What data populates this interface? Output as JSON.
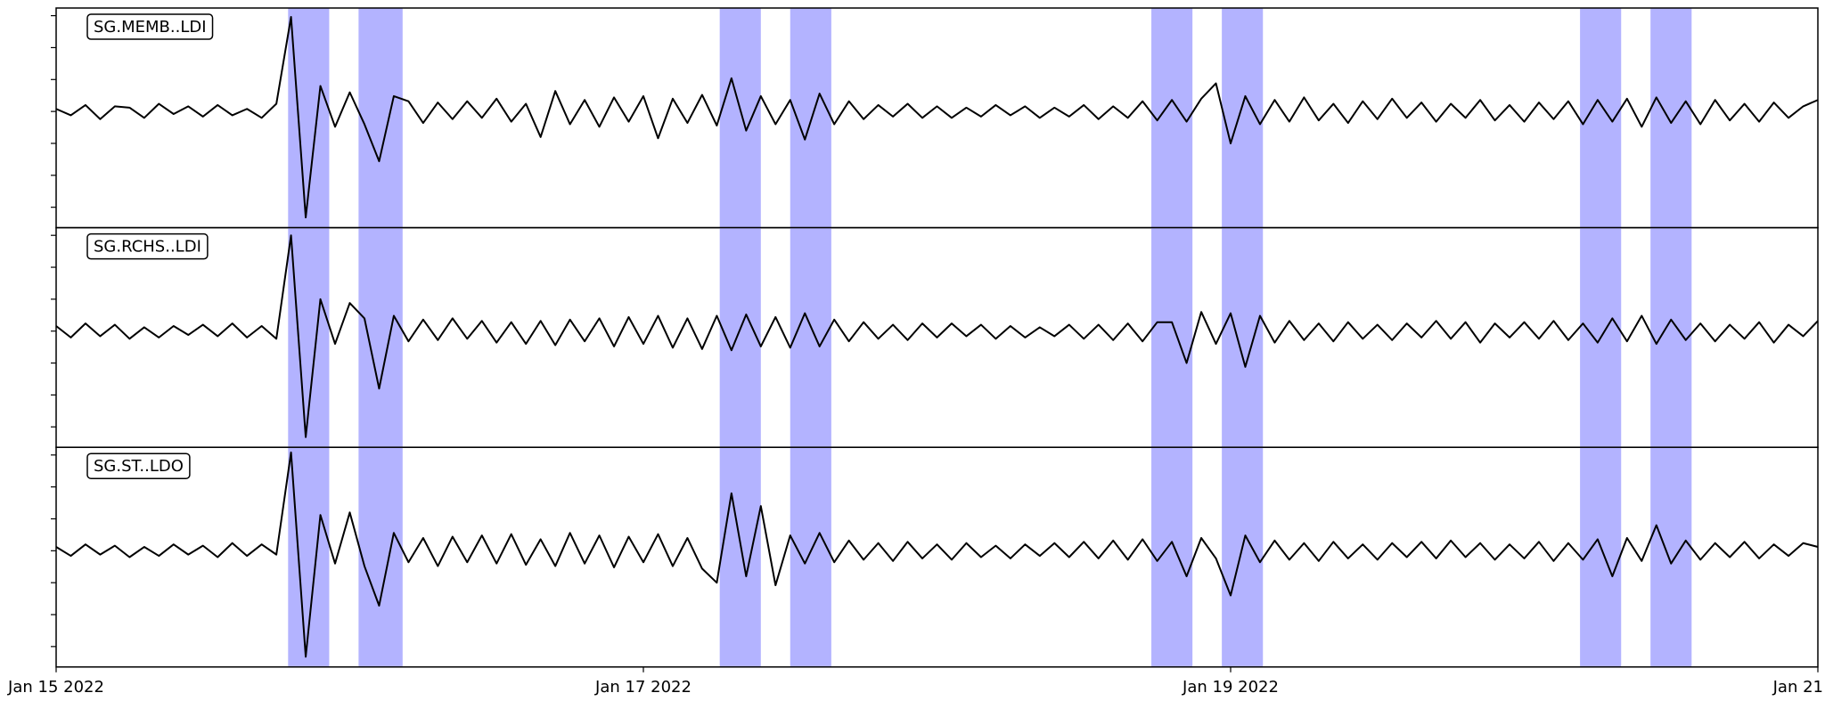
{
  "chart_data": [
    {
      "type": "line",
      "annotation": "SG.MEMB..LDI",
      "x": [
        0,
        0.05,
        0.1,
        0.15,
        0.2,
        0.25,
        0.3,
        0.35,
        0.4,
        0.45,
        0.5,
        0.55,
        0.6,
        0.65,
        0.7,
        0.75,
        0.8,
        0.85,
        0.9,
        0.95,
        1,
        1.05,
        1.1,
        1.15,
        1.2,
        1.25,
        1.3,
        1.35,
        1.4,
        1.45,
        1.5,
        1.55,
        1.6,
        1.65,
        1.7,
        1.75,
        1.8,
        1.85,
        1.9,
        1.95,
        2,
        2.05,
        2.1,
        2.15,
        2.2,
        2.25,
        2.3,
        2.35,
        2.4,
        2.45,
        2.5,
        2.55,
        2.6,
        2.65,
        2.7,
        2.75,
        2.8,
        2.85,
        2.9,
        2.95,
        3,
        3.05,
        3.1,
        3.15,
        3.2,
        3.25,
        3.3,
        3.35,
        3.4,
        3.45,
        3.5,
        3.55,
        3.6,
        3.65,
        3.7,
        3.75,
        3.8,
        3.85,
        3.9,
        3.95,
        4,
        4.05,
        4.1,
        4.15,
        4.2,
        4.25,
        4.3,
        4.35,
        4.4,
        4.45,
        4.5,
        4.55,
        4.6,
        4.65,
        4.7,
        4.75,
        4.8,
        4.85,
        4.9,
        4.95,
        5,
        5.05,
        5.1,
        5.15,
        5.2,
        5.25,
        5.3,
        5.35,
        5.4,
        5.45,
        5.5,
        5.55,
        5.6,
        5.65,
        5.7,
        5.75,
        5.8,
        5.85,
        5.9,
        5.95,
        6
      ],
      "series": [
        {
          "color": "#000000",
          "values": [
            0.02,
            -0.03,
            0.05,
            -0.06,
            0.04,
            0.03,
            -0.05,
            0.06,
            -0.02,
            0.04,
            -0.04,
            0.05,
            -0.03,
            0.02,
            -0.05,
            0.06,
            0.74,
            -0.83,
            0.2,
            -0.12,
            0.15,
            -0.1,
            -0.39,
            0.12,
            0.08,
            -0.09,
            0.07,
            -0.06,
            0.08,
            -0.05,
            0.1,
            -0.08,
            0.06,
            -0.2,
            0.16,
            -0.1,
            0.09,
            -0.12,
            0.11,
            -0.08,
            0.12,
            -0.21,
            0.1,
            -0.09,
            0.13,
            -0.11,
            0.26,
            -0.15,
            0.12,
            -0.1,
            0.09,
            -0.22,
            0.14,
            -0.1,
            0.08,
            -0.06,
            0.05,
            -0.04,
            0.06,
            -0.05,
            0.04,
            -0.05,
            0.03,
            -0.04,
            0.05,
            -0.03,
            0.04,
            -0.05,
            0.03,
            -0.04,
            0.05,
            -0.06,
            0.04,
            -0.05,
            0.08,
            -0.07,
            0.09,
            -0.08,
            0.1,
            0.22,
            -0.25,
            0.12,
            -0.1,
            0.09,
            -0.08,
            0.11,
            -0.07,
            0.06,
            -0.09,
            0.08,
            -0.06,
            0.1,
            -0.05,
            0.07,
            -0.08,
            0.06,
            -0.05,
            0.09,
            -0.07,
            0.05,
            -0.08,
            0.07,
            -0.06,
            0.08,
            -0.1,
            0.09,
            -0.08,
            0.1,
            -0.12,
            0.11,
            -0.09,
            0.08,
            -0.1,
            0.09,
            -0.07,
            0.06,
            -0.08,
            0.07,
            -0.05,
            0.04,
            0.09
          ]
        }
      ],
      "spans": [
        [
          0.79,
          0.93
        ],
        [
          1.03,
          1.18
        ],
        [
          2.26,
          2.4
        ],
        [
          2.5,
          2.64
        ],
        [
          3.73,
          3.87
        ],
        [
          3.97,
          4.11
        ],
        [
          5.19,
          5.33
        ],
        [
          5.43,
          5.57
        ]
      ],
      "span_color": "#b3b3ff",
      "xlim": [
        0,
        6
      ],
      "ylim": [
        -0.91,
        0.81
      ],
      "yticks": [
        -0.75,
        -0.5,
        -0.25,
        0,
        0.25,
        0.5,
        0.75
      ]
    },
    {
      "type": "line",
      "annotation": "SG.RCHS..LDI",
      "x": [
        0,
        0.05,
        0.1,
        0.15,
        0.2,
        0.25,
        0.3,
        0.35,
        0.4,
        0.45,
        0.5,
        0.55,
        0.6,
        0.65,
        0.7,
        0.75,
        0.8,
        0.85,
        0.9,
        0.95,
        1,
        1.05,
        1.1,
        1.15,
        1.2,
        1.25,
        1.3,
        1.35,
        1.4,
        1.45,
        1.5,
        1.55,
        1.6,
        1.65,
        1.7,
        1.75,
        1.8,
        1.85,
        1.9,
        1.95,
        2,
        2.05,
        2.1,
        2.15,
        2.2,
        2.25,
        2.3,
        2.35,
        2.4,
        2.45,
        2.5,
        2.55,
        2.6,
        2.65,
        2.7,
        2.75,
        2.8,
        2.85,
        2.9,
        2.95,
        3,
        3.05,
        3.1,
        3.15,
        3.2,
        3.25,
        3.3,
        3.35,
        3.4,
        3.45,
        3.5,
        3.55,
        3.6,
        3.65,
        3.7,
        3.75,
        3.8,
        3.85,
        3.9,
        3.95,
        4,
        4.05,
        4.1,
        4.15,
        4.2,
        4.25,
        4.3,
        4.35,
        4.4,
        4.45,
        4.5,
        4.55,
        4.6,
        4.65,
        4.7,
        4.75,
        4.8,
        4.85,
        4.9,
        4.95,
        5,
        5.05,
        5.1,
        5.15,
        5.2,
        5.25,
        5.3,
        5.35,
        5.4,
        5.45,
        5.5,
        5.55,
        5.6,
        5.65,
        5.7,
        5.75,
        5.8,
        5.85,
        5.9,
        5.95,
        6
      ],
      "series": [
        {
          "color": "#000000",
          "values": [
            0.04,
            -0.05,
            0.06,
            -0.04,
            0.05,
            -0.06,
            0.03,
            -0.05,
            0.04,
            -0.03,
            0.05,
            -0.04,
            0.06,
            -0.05,
            0.04,
            -0.06,
            0.75,
            -0.83,
            0.25,
            -0.1,
            0.22,
            0.1,
            -0.45,
            0.12,
            -0.08,
            0.09,
            -0.07,
            0.1,
            -0.06,
            0.08,
            -0.09,
            0.07,
            -0.1,
            0.08,
            -0.11,
            0.09,
            -0.08,
            0.1,
            -0.12,
            0.11,
            -0.1,
            0.12,
            -0.13,
            0.1,
            -0.14,
            0.12,
            -0.15,
            0.13,
            -0.12,
            0.11,
            -0.13,
            0.14,
            -0.12,
            0.09,
            -0.08,
            0.07,
            -0.06,
            0.05,
            -0.07,
            0.06,
            -0.05,
            0.06,
            -0.04,
            0.05,
            -0.06,
            0.04,
            -0.05,
            0.03,
            -0.04,
            0.05,
            -0.06,
            0.05,
            -0.07,
            0.06,
            -0.08,
            0.07,
            0.07,
            -0.25,
            0.15,
            -0.1,
            0.14,
            -0.28,
            0.12,
            -0.09,
            0.08,
            -0.07,
            0.06,
            -0.08,
            0.07,
            -0.06,
            0.05,
            -0.07,
            0.06,
            -0.05,
            0.08,
            -0.06,
            0.07,
            -0.09,
            0.06,
            -0.05,
            0.07,
            -0.06,
            0.08,
            -0.07,
            0.06,
            -0.09,
            0.1,
            -0.08,
            0.12,
            -0.1,
            0.09,
            -0.07,
            0.06,
            -0.08,
            0.05,
            -0.06,
            0.07,
            -0.09,
            0.05,
            -0.04,
            0.08
          ]
        }
      ],
      "spans": [
        [
          0.79,
          0.93
        ],
        [
          1.03,
          1.18
        ],
        [
          2.26,
          2.4
        ],
        [
          2.5,
          2.64
        ],
        [
          3.73,
          3.87
        ],
        [
          3.97,
          4.11
        ],
        [
          5.19,
          5.33
        ],
        [
          5.43,
          5.57
        ]
      ],
      "span_color": "#b3b3ff",
      "xlim": [
        0,
        6
      ],
      "ylim": [
        -0.91,
        0.81
      ],
      "yticks": [
        -0.75,
        -0.5,
        -0.25,
        0,
        0.25,
        0.5,
        0.75
      ]
    },
    {
      "type": "line",
      "annotation": "SG.ST..LDO",
      "x": [
        0,
        0.05,
        0.1,
        0.15,
        0.2,
        0.25,
        0.3,
        0.35,
        0.4,
        0.45,
        0.5,
        0.55,
        0.6,
        0.65,
        0.7,
        0.75,
        0.8,
        0.85,
        0.9,
        0.95,
        1,
        1.05,
        1.1,
        1.15,
        1.2,
        1.25,
        1.3,
        1.35,
        1.4,
        1.45,
        1.5,
        1.55,
        1.6,
        1.65,
        1.7,
        1.75,
        1.8,
        1.85,
        1.9,
        1.95,
        2,
        2.05,
        2.1,
        2.15,
        2.2,
        2.25,
        2.3,
        2.35,
        2.4,
        2.45,
        2.5,
        2.55,
        2.6,
        2.65,
        2.7,
        2.75,
        2.8,
        2.85,
        2.9,
        2.95,
        3,
        3.05,
        3.1,
        3.15,
        3.2,
        3.25,
        3.3,
        3.35,
        3.4,
        3.45,
        3.5,
        3.55,
        3.6,
        3.65,
        3.7,
        3.75,
        3.8,
        3.85,
        3.9,
        3.95,
        4,
        4.05,
        4.1,
        4.15,
        4.2,
        4.25,
        4.3,
        4.35,
        4.4,
        4.45,
        4.5,
        4.55,
        4.6,
        4.65,
        4.7,
        4.75,
        4.8,
        4.85,
        4.9,
        4.95,
        5,
        5.05,
        5.1,
        5.15,
        5.2,
        5.25,
        5.3,
        5.35,
        5.4,
        5.45,
        5.5,
        5.55,
        5.6,
        5.65,
        5.7,
        5.75,
        5.8,
        5.85,
        5.9,
        5.95,
        6
      ],
      "series": [
        {
          "color": "#000000",
          "values": [
            0.03,
            -0.04,
            0.05,
            -0.03,
            0.04,
            -0.05,
            0.03,
            -0.04,
            0.05,
            -0.03,
            0.04,
            -0.05,
            0.06,
            -0.04,
            0.05,
            -0.03,
            0.77,
            -0.83,
            0.28,
            -0.1,
            0.3,
            -0.12,
            -0.43,
            0.14,
            -0.09,
            0.1,
            -0.12,
            0.11,
            -0.09,
            0.12,
            -0.1,
            0.13,
            -0.11,
            0.09,
            -0.12,
            0.14,
            -0.1,
            0.12,
            -0.13,
            0.11,
            -0.09,
            0.13,
            -0.12,
            0.1,
            -0.14,
            -0.25,
            0.45,
            -0.2,
            0.35,
            -0.27,
            0.12,
            -0.1,
            0.14,
            -0.09,
            0.08,
            -0.07,
            0.06,
            -0.08,
            0.07,
            -0.06,
            0.05,
            -0.07,
            0.06,
            -0.05,
            0.04,
            -0.06,
            0.05,
            -0.04,
            0.06,
            -0.05,
            0.07,
            -0.06,
            0.08,
            -0.07,
            0.09,
            -0.08,
            0.07,
            -0.2,
            0.1,
            -0.06,
            -0.35,
            0.12,
            -0.09,
            0.08,
            -0.07,
            0.06,
            -0.08,
            0.07,
            -0.06,
            0.05,
            -0.07,
            0.06,
            -0.05,
            0.07,
            -0.06,
            0.08,
            -0.05,
            0.06,
            -0.07,
            0.05,
            -0.06,
            0.07,
            -0.08,
            0.06,
            -0.07,
            0.09,
            -0.2,
            0.1,
            -0.08,
            0.2,
            -0.1,
            0.08,
            -0.07,
            0.06,
            -0.05,
            0.07,
            -0.06,
            0.05,
            -0.04,
            0.06,
            0.03
          ]
        }
      ],
      "spans": [
        [
          0.79,
          0.93
        ],
        [
          1.03,
          1.18
        ],
        [
          2.26,
          2.4
        ],
        [
          2.5,
          2.64
        ],
        [
          3.73,
          3.87
        ],
        [
          3.97,
          4.11
        ],
        [
          5.19,
          5.33
        ],
        [
          5.43,
          5.57
        ]
      ],
      "span_color": "#b3b3ff",
      "xlim": [
        0,
        6
      ],
      "ylim": [
        -0.91,
        0.81
      ],
      "yticks": [
        -0.75,
        -0.5,
        -0.25,
        0,
        0.25,
        0.5,
        0.75
      ],
      "xticks": [
        {
          "value": 0,
          "label": "Jan 15 2022"
        },
        {
          "value": 2,
          "label": "Jan 17 2022"
        },
        {
          "value": 4,
          "label": "Jan 19 2022"
        },
        {
          "value": 6,
          "label": "Jan 21"
        }
      ]
    }
  ]
}
